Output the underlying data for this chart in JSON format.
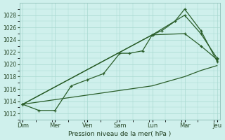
{
  "xlabel": "Pression niveau de la mer( hPa )",
  "background_color": "#cff0ec",
  "grid_color": "#a8d8d0",
  "line_color": "#2a5e2a",
  "ylim": [
    1011.0,
    1030.0
  ],
  "yticks": [
    1012,
    1014,
    1016,
    1018,
    1020,
    1022,
    1024,
    1026,
    1028
  ],
  "xtick_positions": [
    0,
    1,
    2,
    3,
    4,
    5,
    6
  ],
  "xtick_labels": [
    "Dim",
    "Mer",
    "Ven",
    "Sam",
    "Lun",
    "Mar",
    "Jeu"
  ],
  "xlim": [
    -0.1,
    6.1
  ],
  "series1_x": [
    0,
    0.5,
    1.0,
    1.5,
    2.0,
    2.5,
    3.0,
    3.3,
    3.7,
    4.0,
    4.3,
    4.7,
    5.0,
    5.5,
    6.0
  ],
  "series1_y": [
    1013.5,
    1012.5,
    1012.5,
    1016.5,
    1017.5,
    1018.5,
    1021.8,
    1021.8,
    1022.2,
    1024.8,
    1025.5,
    1027.0,
    1029.0,
    1025.5,
    1020.5
  ],
  "series2_x": [
    0,
    4.0,
    5.0,
    5.5,
    6.0
  ],
  "series2_y": [
    1013.5,
    1024.8,
    1028.0,
    1025.0,
    1021.0
  ],
  "series3_x": [
    0,
    4.0,
    5.0,
    5.5,
    6.0
  ],
  "series3_y": [
    1013.5,
    1024.8,
    1025.0,
    1023.0,
    1020.8
  ],
  "series4_x": [
    0,
    4.0,
    5.0,
    5.5,
    6.0
  ],
  "series4_y": [
    1013.5,
    1016.5,
    1018.0,
    1019.0,
    1019.8
  ],
  "ytick_fontsize": 5.5,
  "xtick_fontsize": 6.0,
  "xlabel_fontsize": 6.5
}
